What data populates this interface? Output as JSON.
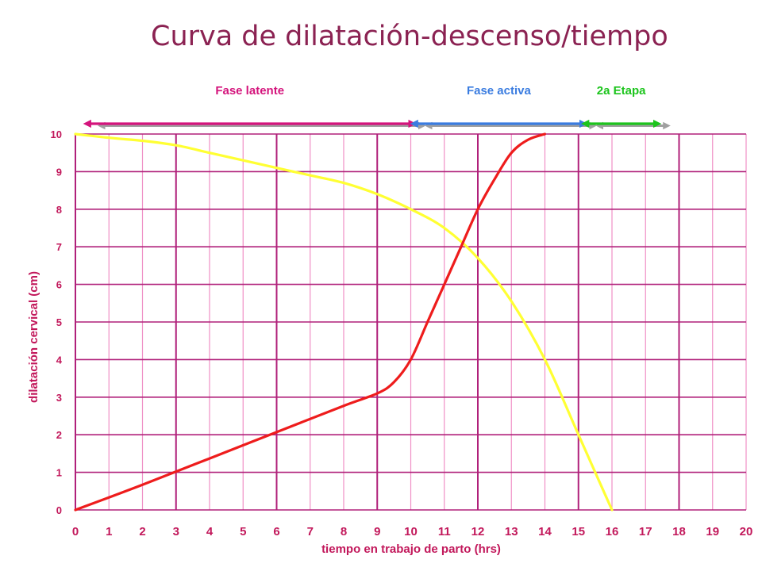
{
  "slide": {
    "title": "Curva de dilatación-descenso/tiempo"
  },
  "colors": {
    "title": "#8b2252",
    "grid_major": "#b0207a",
    "grid_minor": "#ef8fc6",
    "axis_text": "#c2185b",
    "dilatation": "#ee1c1c",
    "descent": "#ffff33",
    "latent": "#d4147c",
    "active": "#3a7ce0",
    "second_stage": "#1cc41c",
    "shadow_arrow": "#a0a0a0"
  },
  "chart_data": {
    "type": "line",
    "xlabel": "tiempo en trabajo de parto (hrs)",
    "ylabel": "dilatación cervical (cm)",
    "xlim": [
      0,
      20
    ],
    "ylim": [
      0,
      10
    ],
    "xticks": [
      "0",
      "1",
      "2",
      "3",
      "4",
      "5",
      "6",
      "7",
      "8",
      "9",
      "10",
      "11",
      "12",
      "13",
      "14",
      "15",
      "16",
      "17",
      "18",
      "19",
      "20"
    ],
    "yticks": [
      "0",
      "1",
      "2",
      "3",
      "4",
      "5",
      "6",
      "7",
      "8",
      "9",
      "10"
    ],
    "grid": true,
    "series": [
      {
        "key": "dilatation",
        "color": "#ee1c1c",
        "points": [
          [
            0,
            0
          ],
          [
            2,
            0.67
          ],
          [
            4,
            1.37
          ],
          [
            6,
            2.07
          ],
          [
            8,
            2.77
          ],
          [
            9,
            3.1
          ],
          [
            9.5,
            3.4
          ],
          [
            10,
            4.0
          ],
          [
            10.5,
            5.0
          ],
          [
            11,
            6.0
          ],
          [
            11.5,
            7.0
          ],
          [
            12,
            8.0
          ],
          [
            12.5,
            8.8
          ],
          [
            13,
            9.5
          ],
          [
            13.5,
            9.85
          ],
          [
            14,
            10
          ]
        ]
      },
      {
        "key": "descent",
        "color": "#ffff33",
        "points": [
          [
            0,
            10
          ],
          [
            1,
            9.9
          ],
          [
            2,
            9.82
          ],
          [
            3,
            9.7
          ],
          [
            4,
            9.5
          ],
          [
            5,
            9.3
          ],
          [
            6,
            9.1
          ],
          [
            7,
            8.9
          ],
          [
            8,
            8.7
          ],
          [
            9,
            8.4
          ],
          [
            10,
            8.0
          ],
          [
            11,
            7.5
          ],
          [
            12,
            6.7
          ],
          [
            13,
            5.55
          ],
          [
            14,
            4.0
          ],
          [
            15,
            2.0
          ],
          [
            16,
            0
          ]
        ]
      }
    ],
    "phases": [
      {
        "key": "latent",
        "label": "Fase latente",
        "color": "#d4147c",
        "start": 0.35,
        "end": 10.05
      },
      {
        "key": "active",
        "label": "Fase activa",
        "color": "#3a7ce0",
        "start": 10.1,
        "end": 15.15
      },
      {
        "key": "second",
        "label": "2a Etapa",
        "color": "#1cc41c",
        "start": 15.2,
        "end": 17.35
      }
    ]
  }
}
